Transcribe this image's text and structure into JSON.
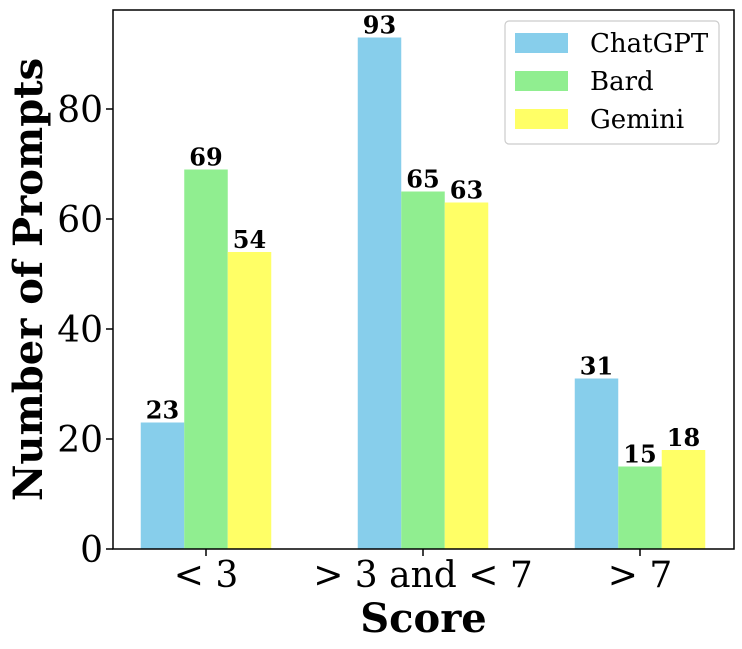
{
  "chart_data": {
    "type": "bar",
    "title": "",
    "xlabel": "Score",
    "ylabel": "Number of Prompts",
    "categories": [
      "< 3",
      "> 3 and < 7",
      "> 7"
    ],
    "series": [
      {
        "name": "ChatGPT",
        "color": "#87ceeb",
        "values": [
          23,
          93,
          31
        ]
      },
      {
        "name": "Bard",
        "color": "#90ee90",
        "values": [
          69,
          65,
          15
        ]
      },
      {
        "name": "Gemini",
        "color": "#ffff66",
        "values": [
          54,
          63,
          18
        ]
      }
    ],
    "ylim": [
      0,
      98
    ],
    "yticks": [
      0,
      20,
      40,
      60,
      80
    ],
    "grid": false,
    "legend_position": "top-right"
  }
}
